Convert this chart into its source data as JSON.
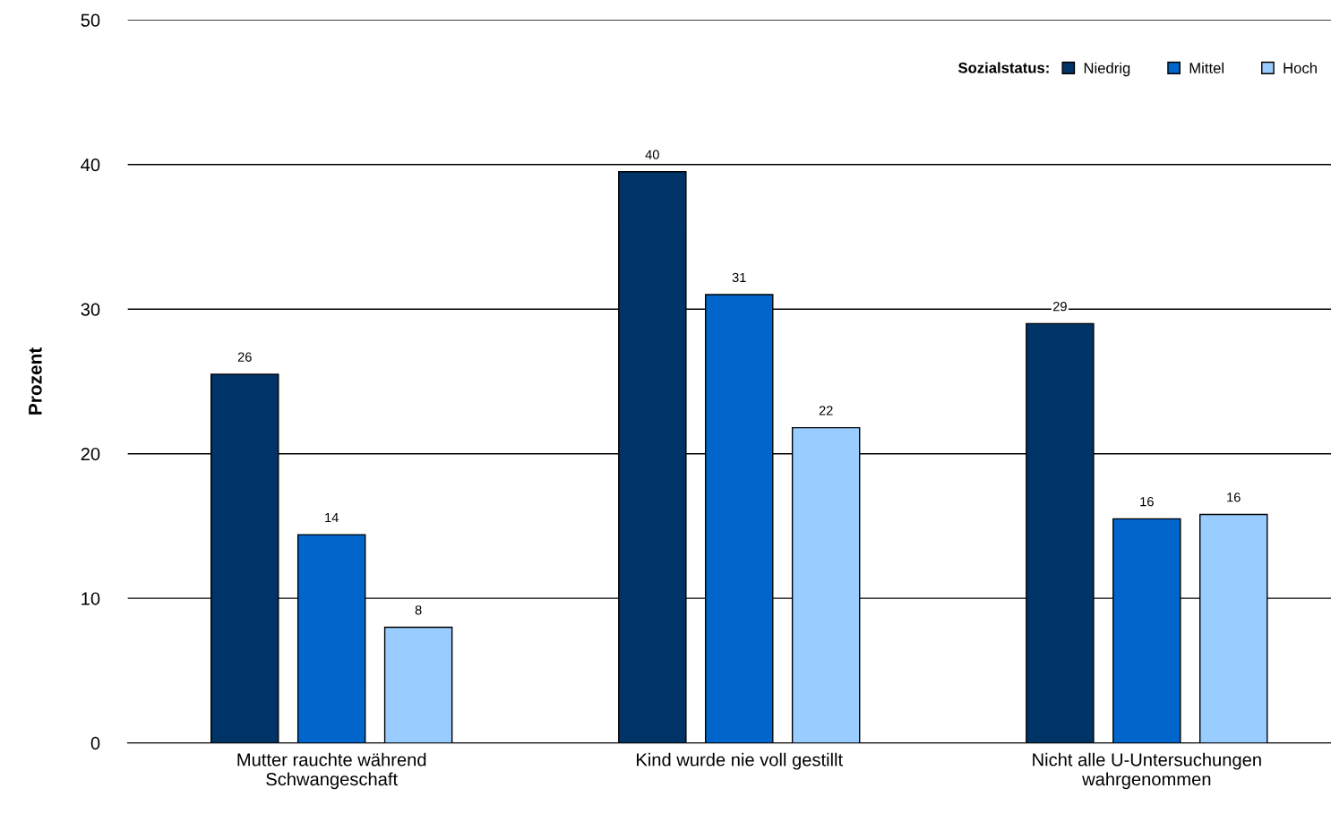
{
  "chart_data": {
    "type": "bar",
    "ylabel": "Prozent",
    "legend_title": "Sozialstatus:",
    "categories": [
      "Mutter rauchte während\nSchwangeschaft",
      "Kind wurde nie voll gestillt",
      "Nicht alle U-Untersuchungen\nwahrgenommen"
    ],
    "series": [
      {
        "name": "Niedrig",
        "color": "#003366",
        "values": [
          25.5,
          39.5,
          29.0
        ],
        "value_labels": [
          "26",
          "40",
          "29"
        ]
      },
      {
        "name": "Mittel",
        "color": "#0066cc",
        "values": [
          14.4,
          31.0,
          15.5
        ],
        "value_labels": [
          "14",
          "31",
          "16"
        ]
      },
      {
        "name": "Hoch",
        "color": "#99ccff",
        "values": [
          8.0,
          21.8,
          15.8
        ],
        "value_labels": [
          "8",
          "22",
          "16"
        ]
      }
    ],
    "ylim": [
      0,
      50
    ],
    "yticks": [
      0,
      10,
      20,
      30,
      40,
      50
    ],
    "grid": "y",
    "legend": "top right"
  }
}
